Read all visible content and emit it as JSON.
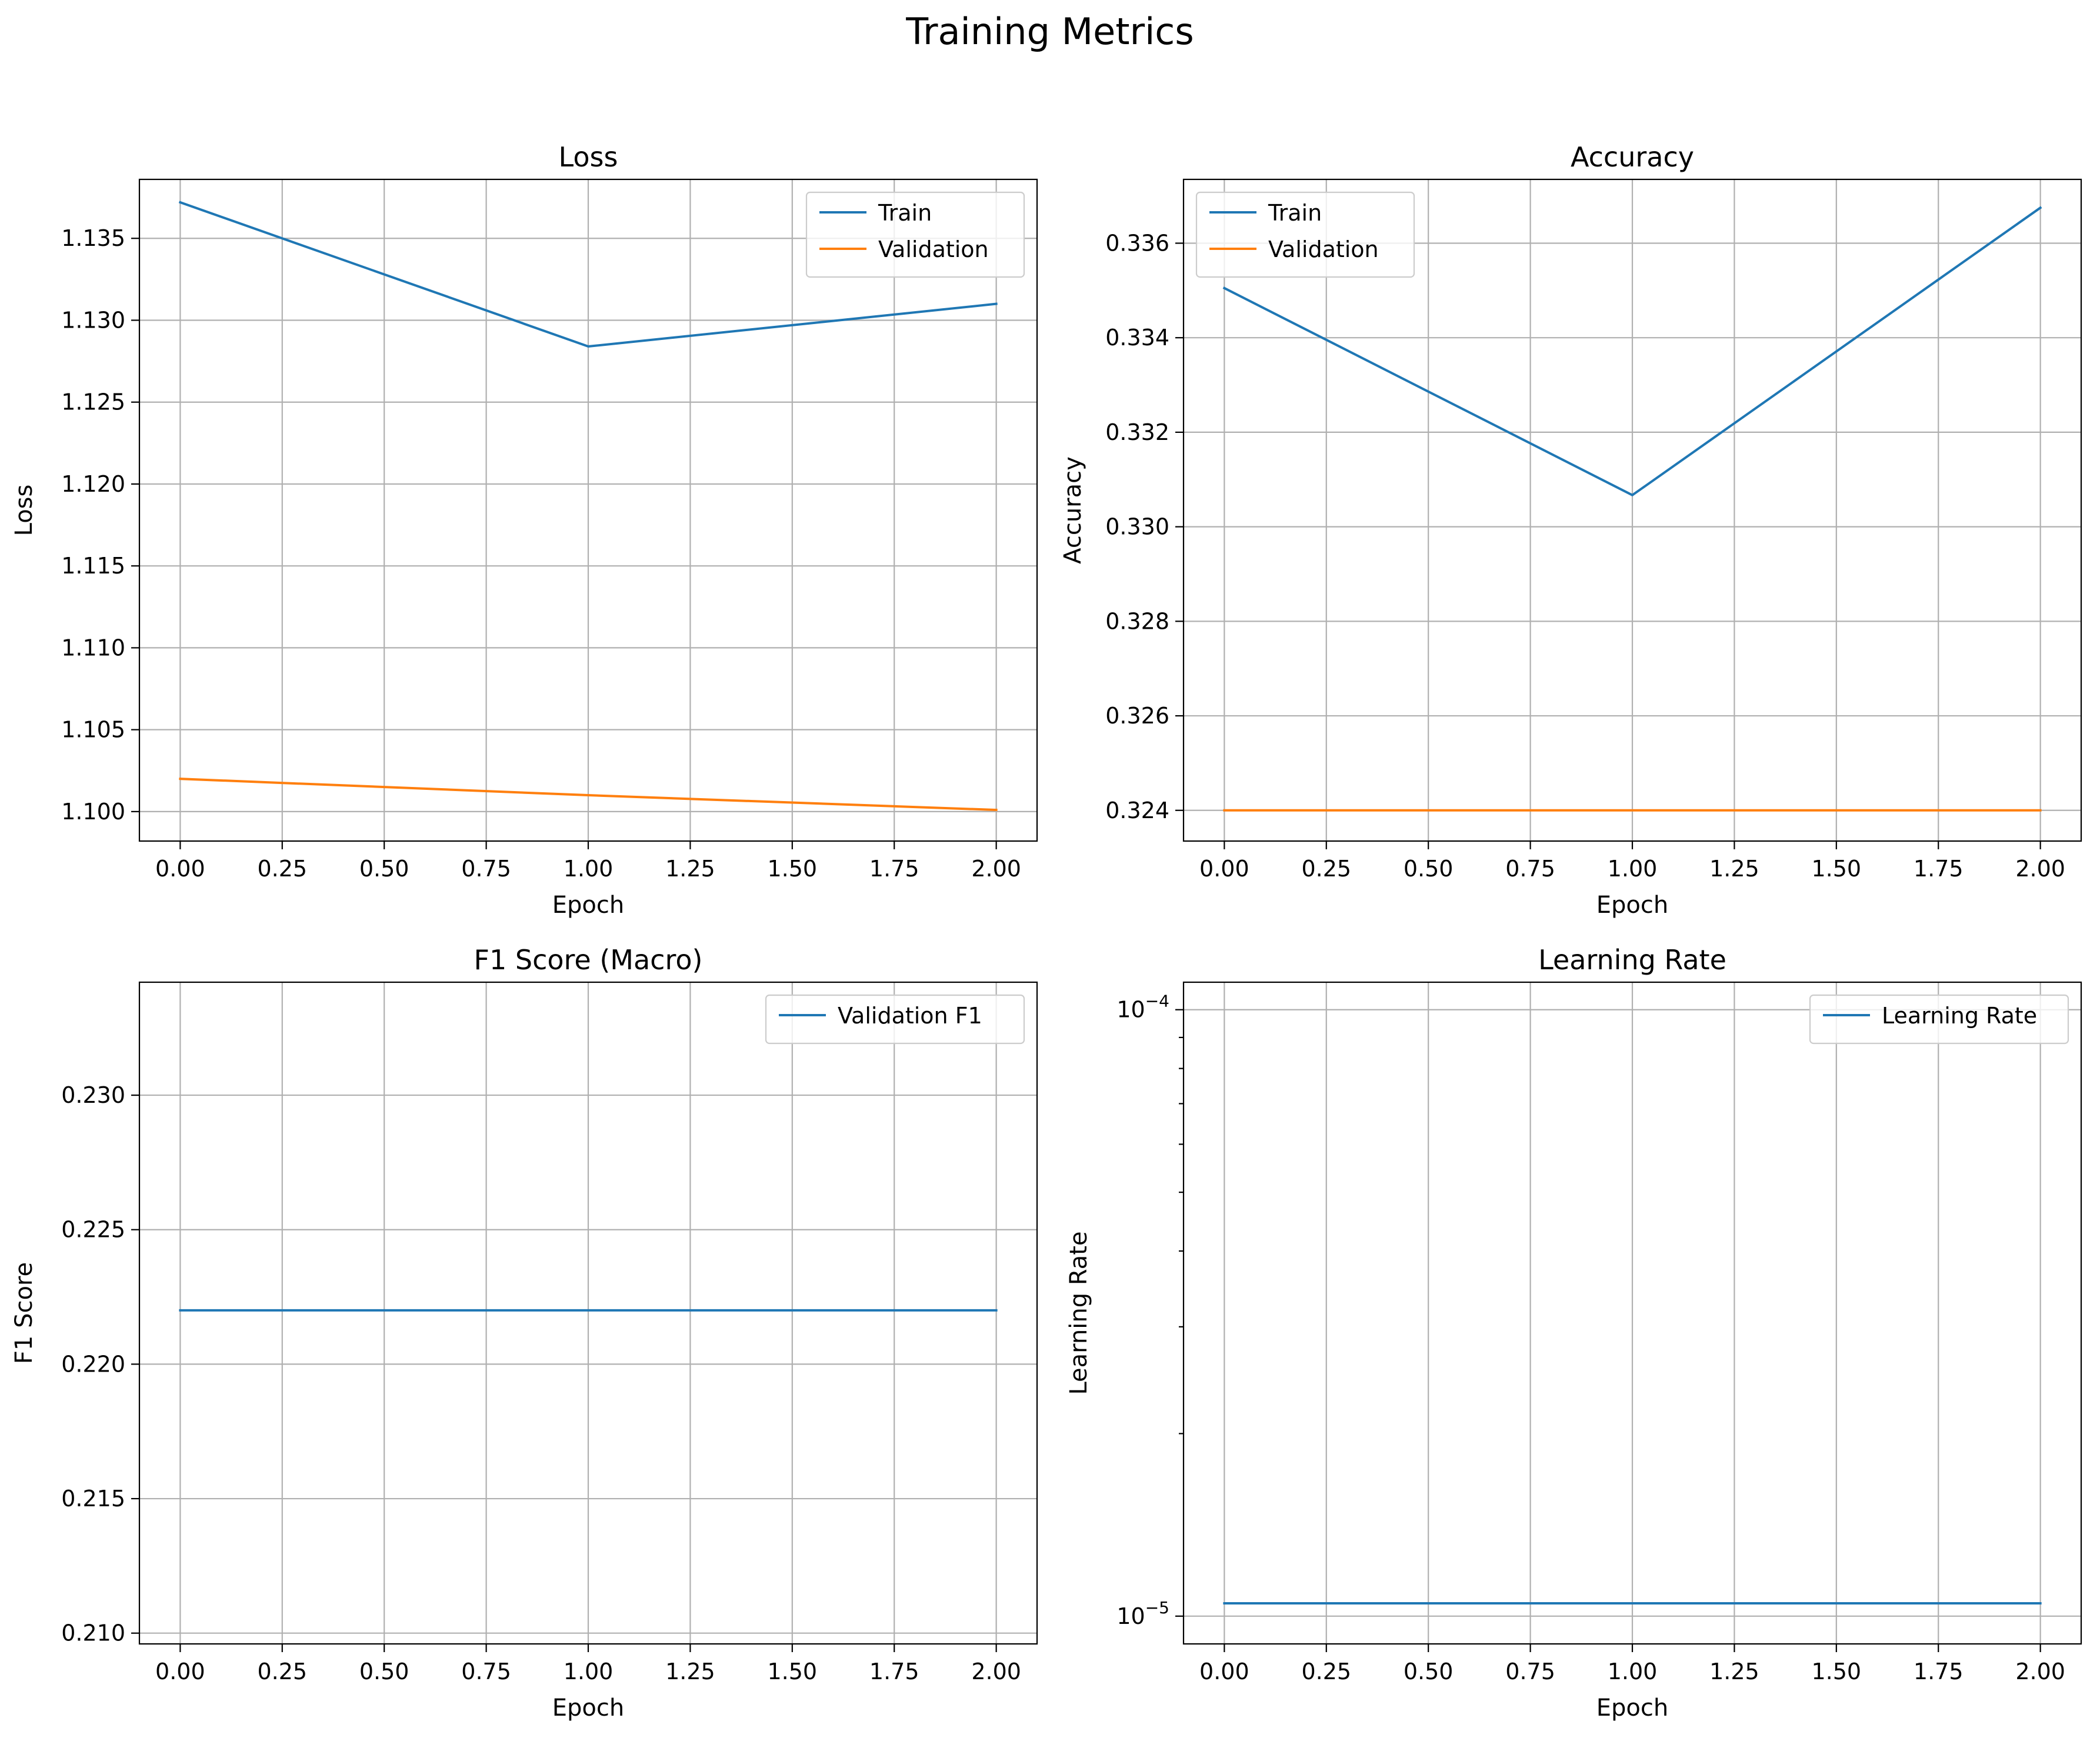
{
  "suptitle": "Training Metrics",
  "colors": {
    "blue": "#1f77b4",
    "orange": "#ff7f0e",
    "grid": "#b0b0b0"
  },
  "chart_data": [
    {
      "type": "line",
      "title": "Loss",
      "xlabel": "Epoch",
      "ylabel": "Loss",
      "xlim": [
        -0.1,
        2.1
      ],
      "ylim": [
        1.0982,
        1.1386
      ],
      "xticks": [
        0,
        0.25,
        0.5,
        0.75,
        1.0,
        1.25,
        1.5,
        1.75,
        2.0
      ],
      "xtick_labels": [
        "0.00",
        "0.25",
        "0.50",
        "0.75",
        "1.00",
        "1.25",
        "1.50",
        "1.75",
        "2.00"
      ],
      "yticks": [
        1.1,
        1.105,
        1.11,
        1.115,
        1.12,
        1.125,
        1.13,
        1.135
      ],
      "ytick_labels": [
        "1.100",
        "1.105",
        "1.110",
        "1.115",
        "1.120",
        "1.125",
        "1.130",
        "1.135"
      ],
      "yscale": "linear",
      "grid": true,
      "legend": "upper right",
      "x": [
        0,
        1,
        2
      ],
      "series": [
        {
          "name": "Train",
          "color": "#1f77b4",
          "values": [
            1.1372,
            1.1284,
            1.131
          ]
        },
        {
          "name": "Validation",
          "color": "#ff7f0e",
          "values": [
            1.102,
            1.101,
            1.1001
          ]
        }
      ]
    },
    {
      "type": "line",
      "title": "Accuracy",
      "xlabel": "Epoch",
      "ylabel": "Accuracy",
      "xlim": [
        -0.1,
        2.1
      ],
      "ylim": [
        0.32335,
        0.33735
      ],
      "xticks": [
        0,
        0.25,
        0.5,
        0.75,
        1.0,
        1.25,
        1.5,
        1.75,
        2.0
      ],
      "xtick_labels": [
        "0.00",
        "0.25",
        "0.50",
        "0.75",
        "1.00",
        "1.25",
        "1.50",
        "1.75",
        "2.00"
      ],
      "yticks": [
        0.324,
        0.326,
        0.328,
        0.33,
        0.332,
        0.334,
        0.336
      ],
      "ytick_labels": [
        "0.324",
        "0.326",
        "0.328",
        "0.330",
        "0.332",
        "0.334",
        "0.336"
      ],
      "yscale": "linear",
      "grid": true,
      "legend": "upper left",
      "x": [
        0,
        1,
        2
      ],
      "series": [
        {
          "name": "Train",
          "color": "#1f77b4",
          "values": [
            0.33505,
            0.33067,
            0.33675
          ]
        },
        {
          "name": "Validation",
          "color": "#ff7f0e",
          "values": [
            0.324,
            0.324,
            0.324
          ]
        }
      ]
    },
    {
      "type": "line",
      "title": "F1 Score (Macro)",
      "xlabel": "Epoch",
      "ylabel": "F1 Score",
      "xlim": [
        -0.1,
        2.1
      ],
      "ylim": [
        0.2096,
        0.2342
      ],
      "xticks": [
        0,
        0.25,
        0.5,
        0.75,
        1.0,
        1.25,
        1.5,
        1.75,
        2.0
      ],
      "xtick_labels": [
        "0.00",
        "0.25",
        "0.50",
        "0.75",
        "1.00",
        "1.25",
        "1.50",
        "1.75",
        "2.00"
      ],
      "yticks": [
        0.21,
        0.215,
        0.22,
        0.225,
        0.23
      ],
      "ytick_labels": [
        "0.210",
        "0.215",
        "0.220",
        "0.225",
        "0.230"
      ],
      "yscale": "linear",
      "grid": true,
      "legend": "upper right",
      "x": [
        0,
        1,
        2
      ],
      "series": [
        {
          "name": "Validation F1",
          "color": "#1f77b4",
          "values": [
            0.222,
            0.222,
            0.222
          ]
        }
      ]
    },
    {
      "type": "line",
      "title": "Learning Rate",
      "xlabel": "Epoch",
      "ylabel": "Learning Rate",
      "xlim": [
        -0.1,
        2.1
      ],
      "ylim": [
        9e-06,
        0.000111
      ],
      "xticks": [
        0,
        0.25,
        0.5,
        0.75,
        1.0,
        1.25,
        1.5,
        1.75,
        2.0
      ],
      "xtick_labels": [
        "0.00",
        "0.25",
        "0.50",
        "0.75",
        "1.00",
        "1.25",
        "1.50",
        "1.75",
        "2.00"
      ],
      "yticks": [
        1e-05,
        0.0001
      ],
      "ytick_labels": [
        {
          "base": "10",
          "exp": "−5"
        },
        {
          "base": "10",
          "exp": "−4"
        }
      ],
      "yminor": [
        2e-05,
        3e-05,
        4e-05,
        5e-05,
        6e-05,
        7e-05,
        8e-05,
        9e-05
      ],
      "yscale": "log",
      "grid": true,
      "legend": "upper right",
      "x": [
        0,
        1,
        2
      ],
      "series": [
        {
          "name": "Learning Rate",
          "color": "#1f77b4",
          "values": [
            1.05e-05,
            1.05e-05,
            1.05e-05
          ]
        }
      ]
    }
  ]
}
